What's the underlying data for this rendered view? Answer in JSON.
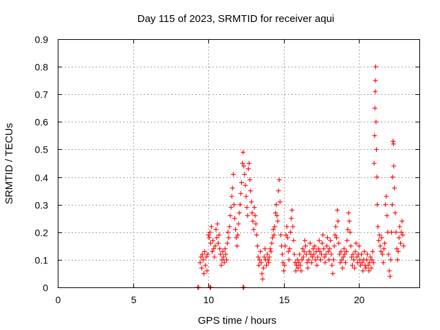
{
  "chart_data": {
    "type": "scatter",
    "title": "Day 115 of 2023, SRMTID for receiver aqui",
    "xlabel": "GPS time / hours",
    "ylabel": "SRMTID / TECUs",
    "xlim": [
      0,
      24
    ],
    "ylim": [
      0,
      0.9
    ],
    "xticks": [
      0,
      5,
      10,
      15,
      20
    ],
    "yticks": [
      0,
      0.1,
      0.2,
      0.3,
      0.4,
      0.5,
      0.6,
      0.7,
      0.8,
      0.9
    ],
    "ytick_labels": [
      "0",
      "0.1",
      "0.2",
      "0.3",
      "0.4",
      "0.5",
      "0.6",
      "0.7",
      "0.8",
      "0.9"
    ],
    "grid": true,
    "marker": "+",
    "series": [
      {
        "name": "SRMTID",
        "color": "#ff0000",
        "points": [
          [
            9.3,
            0.0
          ],
          [
            9.35,
            0.0
          ],
          [
            10.1,
            0.0
          ],
          [
            10.15,
            0.0
          ],
          [
            12.3,
            0.0
          ],
          [
            12.35,
            0.0
          ],
          [
            9.45,
            0.09
          ],
          [
            9.5,
            0.11
          ],
          [
            9.55,
            0.07
          ],
          [
            9.6,
            0.12
          ],
          [
            9.65,
            0.1
          ],
          [
            9.7,
            0.05
          ],
          [
            9.75,
            0.13
          ],
          [
            9.8,
            0.08
          ],
          [
            9.85,
            0.11
          ],
          [
            9.9,
            0.06
          ],
          [
            9.95,
            0.12
          ],
          [
            10.0,
            0.19
          ],
          [
            10.05,
            0.18
          ],
          [
            10.1,
            0.2
          ],
          [
            10.15,
            0.16
          ],
          [
            10.2,
            0.22
          ],
          [
            10.25,
            0.13
          ],
          [
            10.3,
            0.17
          ],
          [
            10.35,
            0.14
          ],
          [
            10.4,
            0.11
          ],
          [
            10.45,
            0.15
          ],
          [
            10.5,
            0.21
          ],
          [
            10.55,
            0.18
          ],
          [
            10.6,
            0.23
          ],
          [
            10.65,
            0.16
          ],
          [
            10.7,
            0.19
          ],
          [
            10.75,
            0.14
          ],
          [
            10.8,
            0.12
          ],
          [
            10.85,
            0.08
          ],
          [
            10.9,
            0.1
          ],
          [
            10.95,
            0.13
          ],
          [
            11.0,
            0.11
          ],
          [
            11.05,
            0.09
          ],
          [
            11.1,
            0.14
          ],
          [
            11.15,
            0.12
          ],
          [
            11.2,
            0.1
          ],
          [
            11.25,
            0.16
          ],
          [
            11.3,
            0.2
          ],
          [
            11.35,
            0.18
          ],
          [
            11.4,
            0.22
          ],
          [
            11.45,
            0.26
          ],
          [
            11.5,
            0.29
          ],
          [
            11.55,
            0.33
          ],
          [
            11.6,
            0.36
          ],
          [
            11.65,
            0.41
          ],
          [
            11.7,
            0.3
          ],
          [
            11.75,
            0.25
          ],
          [
            11.8,
            0.21
          ],
          [
            11.85,
            0.18
          ],
          [
            11.9,
            0.15
          ],
          [
            11.95,
            0.19
          ],
          [
            12.0,
            0.23
          ],
          [
            12.05,
            0.27
          ],
          [
            12.1,
            0.3
          ],
          [
            12.15,
            0.34
          ],
          [
            12.2,
            0.38
          ],
          [
            12.25,
            0.45
          ],
          [
            12.3,
            0.49
          ],
          [
            12.35,
            0.44
          ],
          [
            12.4,
            0.41
          ],
          [
            12.45,
            0.37
          ],
          [
            12.5,
            0.33
          ],
          [
            12.55,
            0.29
          ],
          [
            12.6,
            0.26
          ],
          [
            12.65,
            0.43
          ],
          [
            12.7,
            0.45
          ],
          [
            12.75,
            0.39
          ],
          [
            12.8,
            0.35
          ],
          [
            12.85,
            0.31
          ],
          [
            12.9,
            0.27
          ],
          [
            12.95,
            0.24
          ],
          [
            13.0,
            0.21
          ],
          [
            13.05,
            0.29
          ],
          [
            13.1,
            0.26
          ],
          [
            13.15,
            0.23
          ],
          [
            13.2,
            0.19
          ],
          [
            13.25,
            0.15
          ],
          [
            13.3,
            0.11
          ],
          [
            13.35,
            0.08
          ],
          [
            13.4,
            0.1
          ],
          [
            13.45,
            0.13
          ],
          [
            13.5,
            0.09
          ],
          [
            13.55,
            0.05
          ],
          [
            13.6,
            0.03
          ],
          [
            13.65,
            0.07
          ],
          [
            13.7,
            0.11
          ],
          [
            13.75,
            0.14
          ],
          [
            13.8,
            0.1
          ],
          [
            13.85,
            0.08
          ],
          [
            13.9,
            0.12
          ],
          [
            13.95,
            0.1
          ],
          [
            14.0,
            0.09
          ],
          [
            14.05,
            0.11
          ],
          [
            14.1,
            0.14
          ],
          [
            14.15,
            0.13
          ],
          [
            14.2,
            0.16
          ],
          [
            14.25,
            0.18
          ],
          [
            14.3,
            0.21
          ],
          [
            14.35,
            0.19
          ],
          [
            14.4,
            0.22
          ],
          [
            14.45,
            0.27
          ],
          [
            14.5,
            0.3
          ],
          [
            14.55,
            0.26
          ],
          [
            14.6,
            0.24
          ],
          [
            14.65,
            0.35
          ],
          [
            14.7,
            0.39
          ],
          [
            14.75,
            0.31
          ],
          [
            14.8,
            0.19
          ],
          [
            14.85,
            0.15
          ],
          [
            14.9,
            0.12
          ],
          [
            14.95,
            0.09
          ],
          [
            15.0,
            0.06
          ],
          [
            15.05,
            0.08
          ],
          [
            15.1,
            0.15
          ],
          [
            15.15,
            0.19
          ],
          [
            15.2,
            0.22
          ],
          [
            15.25,
            0.18
          ],
          [
            15.3,
            0.13
          ],
          [
            15.35,
            0.1
          ],
          [
            15.4,
            0.14
          ],
          [
            15.45,
            0.2
          ],
          [
            15.5,
            0.25
          ],
          [
            15.55,
            0.28
          ],
          [
            15.6,
            0.22
          ],
          [
            15.65,
            0.17
          ],
          [
            15.7,
            0.12
          ],
          [
            15.75,
            0.09
          ],
          [
            15.8,
            0.06
          ],
          [
            15.85,
            0.08
          ],
          [
            15.9,
            0.1
          ],
          [
            15.95,
            0.07
          ],
          [
            16.0,
            0.09
          ],
          [
            16.05,
            0.12
          ],
          [
            16.1,
            0.08
          ],
          [
            16.15,
            0.06
          ],
          [
            16.2,
            0.1
          ],
          [
            16.25,
            0.14
          ],
          [
            16.3,
            0.11
          ],
          [
            16.35,
            0.13
          ],
          [
            16.4,
            0.17
          ],
          [
            16.45,
            0.15
          ],
          [
            16.5,
            0.12
          ],
          [
            16.55,
            0.09
          ],
          [
            16.6,
            0.07
          ],
          [
            16.65,
            0.1
          ],
          [
            16.7,
            0.13
          ],
          [
            16.75,
            0.16
          ],
          [
            16.8,
            0.12
          ],
          [
            16.85,
            0.09
          ],
          [
            16.9,
            0.11
          ],
          [
            16.95,
            0.14
          ],
          [
            17.0,
            0.12
          ],
          [
            17.05,
            0.15
          ],
          [
            17.1,
            0.1
          ],
          [
            17.15,
            0.13
          ],
          [
            17.2,
            0.08
          ],
          [
            17.25,
            0.11
          ],
          [
            17.3,
            0.14
          ],
          [
            17.35,
            0.17
          ],
          [
            17.4,
            0.13
          ],
          [
            17.45,
            0.1
          ],
          [
            17.5,
            0.12
          ],
          [
            17.55,
            0.16
          ],
          [
            17.6,
            0.19
          ],
          [
            17.65,
            0.14
          ],
          [
            17.7,
            0.11
          ],
          [
            17.75,
            0.09
          ],
          [
            17.8,
            0.12
          ],
          [
            17.85,
            0.15
          ],
          [
            17.9,
            0.18
          ],
          [
            17.95,
            0.13
          ],
          [
            18.0,
            0.1
          ],
          [
            18.05,
            0.14
          ],
          [
            18.1,
            0.17
          ],
          [
            18.15,
            0.12
          ],
          [
            18.2,
            0.08
          ],
          [
            18.25,
            0.05
          ],
          [
            18.3,
            0.1
          ],
          [
            18.35,
            0.15
          ],
          [
            18.4,
            0.19
          ],
          [
            18.45,
            0.22
          ],
          [
            18.5,
            0.18
          ],
          [
            18.55,
            0.28
          ],
          [
            18.6,
            0.24
          ],
          [
            18.65,
            0.16
          ],
          [
            18.7,
            0.12
          ],
          [
            18.75,
            0.09
          ],
          [
            18.8,
            0.13
          ],
          [
            18.85,
            0.1
          ],
          [
            18.9,
            0.07
          ],
          [
            18.95,
            0.11
          ],
          [
            19.0,
            0.14
          ],
          [
            19.05,
            0.12
          ],
          [
            19.1,
            0.09
          ],
          [
            19.15,
            0.13
          ],
          [
            19.2,
            0.17
          ],
          [
            19.25,
            0.21
          ],
          [
            19.3,
            0.27
          ],
          [
            19.35,
            0.24
          ],
          [
            19.4,
            0.2
          ],
          [
            19.45,
            0.15
          ],
          [
            19.5,
            0.11
          ],
          [
            19.55,
            0.08
          ],
          [
            19.6,
            0.12
          ],
          [
            19.65,
            0.1
          ],
          [
            19.7,
            0.07
          ],
          [
            19.75,
            0.13
          ],
          [
            19.8,
            0.16
          ],
          [
            19.85,
            0.11
          ],
          [
            19.9,
            0.09
          ],
          [
            19.95,
            0.12
          ],
          [
            20.0,
            0.15
          ],
          [
            20.05,
            0.1
          ],
          [
            20.1,
            0.08
          ],
          [
            20.15,
            0.12
          ],
          [
            20.2,
            0.09
          ],
          [
            20.25,
            0.06
          ],
          [
            20.3,
            0.1
          ],
          [
            20.35,
            0.13
          ],
          [
            20.4,
            0.08
          ],
          [
            20.45,
            0.07
          ],
          [
            20.5,
            0.1
          ],
          [
            20.55,
            0.12
          ],
          [
            20.6,
            0.08
          ],
          [
            20.65,
            0.06
          ],
          [
            20.7,
            0.09
          ],
          [
            20.75,
            0.11
          ],
          [
            20.8,
            0.07
          ],
          [
            20.85,
            0.1
          ],
          [
            20.9,
            0.13
          ],
          [
            20.95,
            0.09
          ],
          [
            21.0,
            0.45
          ],
          [
            21.03,
            0.55
          ],
          [
            21.05,
            0.65
          ],
          [
            21.07,
            0.71
          ],
          [
            21.08,
            0.75
          ],
          [
            21.1,
            0.8
          ],
          [
            21.12,
            0.6
          ],
          [
            21.15,
            0.5
          ],
          [
            21.18,
            0.4
          ],
          [
            21.2,
            0.3
          ],
          [
            21.25,
            0.22
          ],
          [
            21.3,
            0.17
          ],
          [
            21.35,
            0.19
          ],
          [
            21.4,
            0.15
          ],
          [
            21.45,
            0.13
          ],
          [
            21.5,
            0.18
          ],
          [
            21.55,
            0.12
          ],
          [
            21.6,
            0.09
          ],
          [
            21.65,
            0.14
          ],
          [
            21.7,
            0.16
          ],
          [
            21.75,
            0.3
          ],
          [
            21.8,
            0.33
          ],
          [
            21.85,
            0.26
          ],
          [
            21.9,
            0.2
          ],
          [
            21.95,
            0.12
          ],
          [
            22.0,
            0.06
          ],
          [
            22.05,
            0.04
          ],
          [
            22.1,
            0.1
          ],
          [
            22.15,
            0.2
          ],
          [
            22.2,
            0.3
          ],
          [
            22.22,
            0.4
          ],
          [
            22.25,
            0.53
          ],
          [
            22.28,
            0.52
          ],
          [
            22.3,
            0.44
          ],
          [
            22.35,
            0.36
          ],
          [
            22.4,
            0.27
          ],
          [
            22.45,
            0.2
          ],
          [
            22.5,
            0.14
          ],
          [
            22.55,
            0.1
          ],
          [
            22.6,
            0.13
          ],
          [
            22.65,
            0.18
          ],
          [
            22.7,
            0.22
          ],
          [
            22.75,
            0.16
          ],
          [
            22.8,
            0.2
          ],
          [
            22.85,
            0.24
          ],
          [
            22.9,
            0.19
          ],
          [
            22.95,
            0.15
          ]
        ]
      }
    ]
  }
}
